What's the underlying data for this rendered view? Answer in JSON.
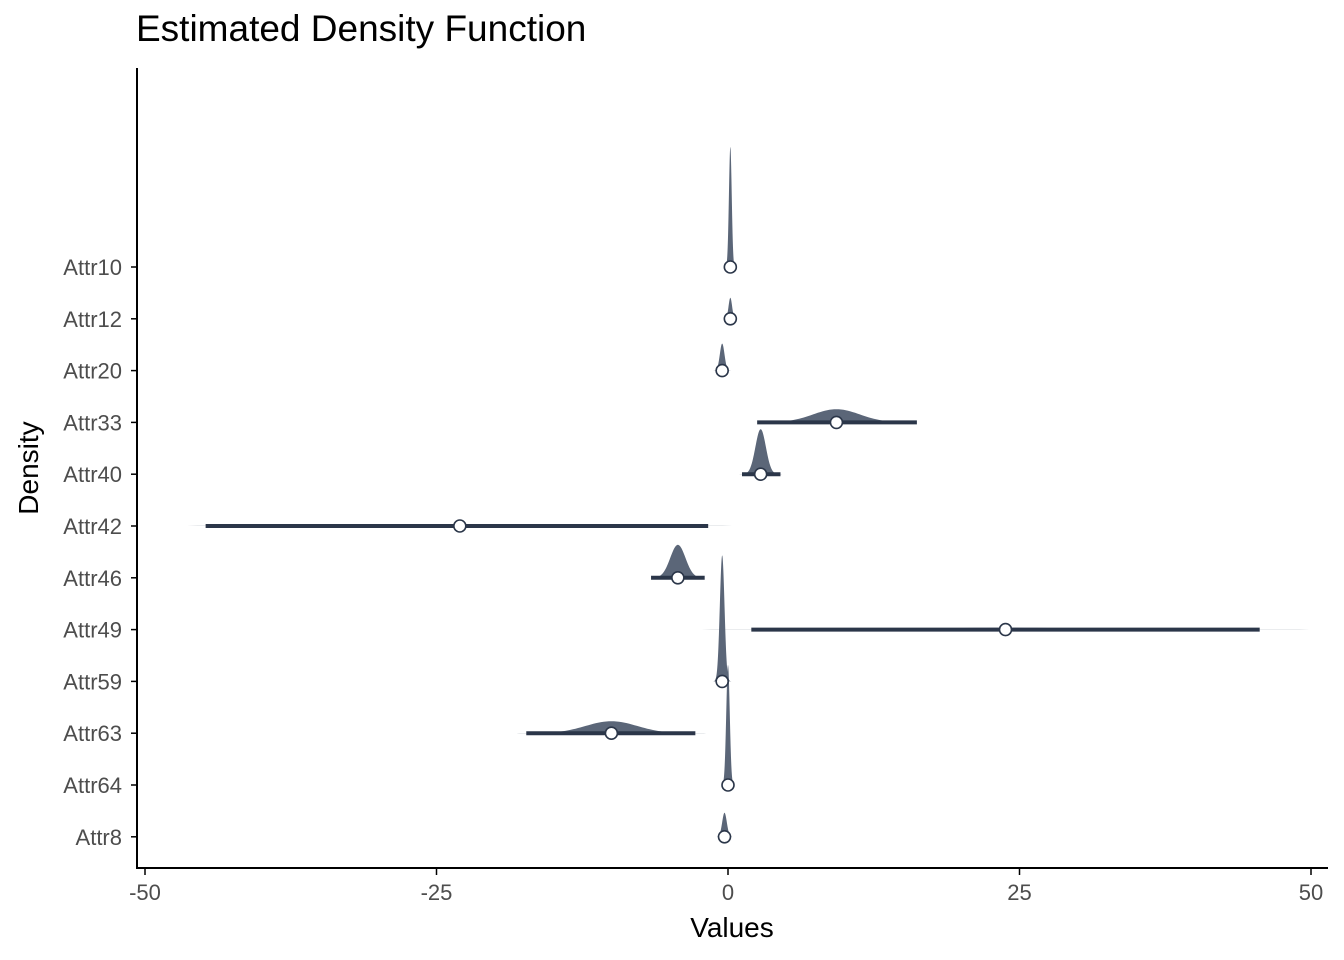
{
  "chart_data": {
    "type": "ridgeline-density",
    "title": "Estimated Density Function",
    "xlabel": "Values",
    "ylabel": "Density",
    "xlim": [
      -51,
      51
    ],
    "x_ticks": [
      -50,
      -25,
      0,
      25,
      50
    ],
    "x_tick_labels": [
      "-50",
      "-25",
      "0",
      "25",
      "50"
    ],
    "grid": false,
    "legend": "none",
    "colors": {
      "density_fill": "#5b6678",
      "interval_line": "#2b3649",
      "point_fill": "#ffffff",
      "point_stroke": "#2b3649",
      "axis": "#000000"
    },
    "series": [
      {
        "name": "Attr10",
        "median": 0.2,
        "interval": [
          0.0,
          0.4
        ],
        "spread": 0.12,
        "peak": 2.0
      },
      {
        "name": "Attr12",
        "median": 0.2,
        "interval": [
          0.0,
          0.4
        ],
        "spread": 0.15,
        "peak": 0.35
      },
      {
        "name": "Attr20",
        "median": -0.5,
        "interval": [
          -0.8,
          -0.2
        ],
        "spread": 0.2,
        "peak": 0.45
      },
      {
        "name": "Attr33",
        "median": 9.3,
        "interval": [
          2.5,
          16.2
        ],
        "spread": 2.0,
        "peak": 0.22
      },
      {
        "name": "Attr40",
        "median": 2.8,
        "interval": [
          1.2,
          4.5
        ],
        "spread": 0.45,
        "peak": 0.75
      },
      {
        "name": "Attr42",
        "median": -23.0,
        "interval": [
          -44.8,
          -1.7
        ],
        "spread": 9.0,
        "peak": 0.03
      },
      {
        "name": "Attr46",
        "median": -4.3,
        "interval": [
          -6.6,
          -2.0
        ],
        "spread": 0.65,
        "peak": 0.55
      },
      {
        "name": "Attr49",
        "median": 23.8,
        "interval": [
          2.0,
          45.6
        ],
        "spread": 9.0,
        "peak": 0.03
      },
      {
        "name": "Attr59",
        "median": -0.5,
        "interval": [
          -0.8,
          -0.2
        ],
        "spread": 0.2,
        "peak": 2.1
      },
      {
        "name": "Attr63",
        "median": -10.0,
        "interval": [
          -17.3,
          -2.8
        ],
        "spread": 2.2,
        "peak": 0.2
      },
      {
        "name": "Attr64",
        "median": 0.0,
        "interval": [
          -0.3,
          0.3
        ],
        "spread": 0.15,
        "peak": 2.0
      },
      {
        "name": "Attr8",
        "median": -0.3,
        "interval": [
          -0.6,
          0.0
        ],
        "spread": 0.2,
        "peak": 0.4
      }
    ]
  }
}
